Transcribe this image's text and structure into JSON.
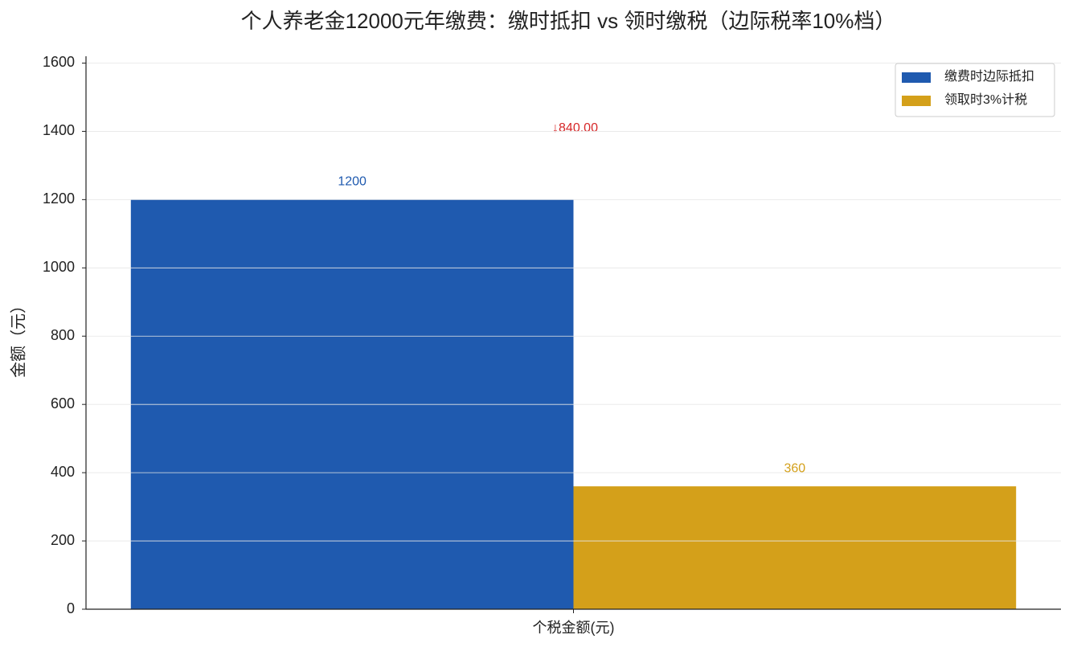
{
  "chart_data": {
    "type": "bar",
    "title": "个人养老金12000元年缴费：缴时抵扣 vs 领时缴税（边际税率10%档）",
    "y_label": "金额（元）",
    "categories": [
      "个税金额(元)"
    ],
    "series": [
      {
        "name": "缴费时边际抵扣",
        "color": "#1f5aaf",
        "values": [
          1200
        ]
      },
      {
        "name": "领取时3%计税",
        "color": "#d4a01a",
        "values": [
          360
        ]
      }
    ],
    "annotation": "↓840.00",
    "annotation_color": "#d62728",
    "ylim": [
      0,
      1620
    ],
    "yticks": [
      0,
      200,
      400,
      600,
      800,
      1000,
      1200,
      1400,
      1600
    ],
    "grid": true,
    "legend": "upper right"
  }
}
